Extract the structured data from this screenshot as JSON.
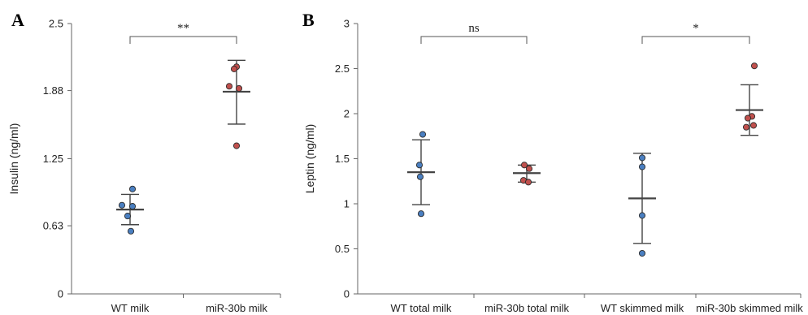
{
  "chart_data": [
    {
      "type": "scatter",
      "panel_label": "A",
      "ylabel": "Insulin (ng/ml)",
      "ylim": [
        0,
        2.5
      ],
      "yticks": [
        {
          "value": 0,
          "label": "0"
        },
        {
          "value": 0.63,
          "label": "0.63"
        },
        {
          "value": 1.25,
          "label": "1.25"
        },
        {
          "value": 1.88,
          "label": "1.88"
        },
        {
          "value": 2.5,
          "label": "2.5"
        }
      ],
      "categories": [
        "WT milk",
        "miR-30b milk"
      ],
      "series": [
        {
          "category": "WT milk",
          "color": "#4a7fc1",
          "points": [
            0.97,
            0.82,
            0.81,
            0.72,
            0.58
          ],
          "mean": 0.78,
          "err_low": 0.64,
          "err_high": 0.92
        },
        {
          "category": "miR-30b milk",
          "color": "#c0504d",
          "points": [
            2.1,
            2.08,
            1.92,
            1.9,
            1.37
          ],
          "mean": 1.87,
          "err_low": 1.57,
          "err_high": 2.16
        }
      ],
      "significance": [
        {
          "from": 0,
          "to": 1,
          "label": "**"
        }
      ]
    },
    {
      "type": "scatter",
      "panel_label": "B",
      "ylabel": "Leptin (ng/ml)",
      "ylim": [
        0,
        3
      ],
      "yticks": [
        {
          "value": 0,
          "label": "0"
        },
        {
          "value": 0.5,
          "label": "0.5"
        },
        {
          "value": 1,
          "label": "1"
        },
        {
          "value": 1.5,
          "label": "1.5"
        },
        {
          "value": 2,
          "label": "2"
        },
        {
          "value": 2.5,
          "label": "2.5"
        },
        {
          "value": 3,
          "label": "3"
        }
      ],
      "categories": [
        "WT total milk",
        "miR-30b total milk",
        "WT skimmed milk",
        "miR-30b skimmed milk"
      ],
      "series": [
        {
          "category": "WT total milk",
          "color": "#4a7fc1",
          "points": [
            1.77,
            1.43,
            1.3,
            0.89
          ],
          "mean": 1.35,
          "err_low": 0.99,
          "err_high": 1.71
        },
        {
          "category": "miR-30b total milk",
          "color": "#c0504d",
          "points": [
            1.43,
            1.39,
            1.26,
            1.24
          ],
          "mean": 1.34,
          "err_low": 1.24,
          "err_high": 1.43
        },
        {
          "category": "WT skimmed milk",
          "color": "#4a7fc1",
          "points": [
            1.51,
            1.41,
            0.87,
            0.45
          ],
          "mean": 1.06,
          "err_low": 0.56,
          "err_high": 1.56
        },
        {
          "category": "miR-30b skimmed milk",
          "color": "#c0504d",
          "points": [
            2.53,
            1.97,
            1.95,
            1.87,
            1.85
          ],
          "mean": 2.04,
          "err_low": 1.76,
          "err_high": 2.32
        }
      ],
      "significance": [
        {
          "from": 0,
          "to": 1,
          "label": "ns"
        },
        {
          "from": 2,
          "to": 3,
          "label": "*"
        }
      ]
    }
  ]
}
